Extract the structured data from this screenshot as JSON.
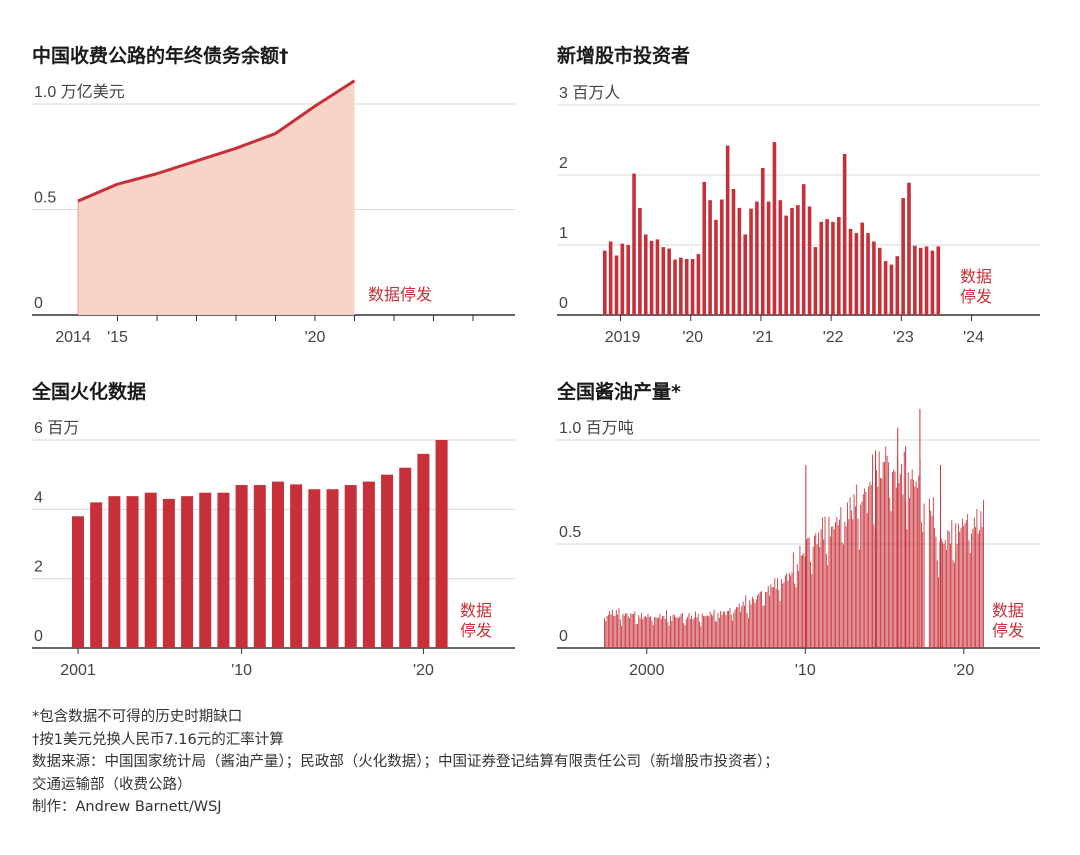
{
  "colors": {
    "accent": "#c73038",
    "area_fill": "#f8d4c8",
    "grid": "#d8d8d8",
    "axis": "#333333"
  },
  "stopped_label": "数据停发",
  "footnotes": [
    "*包含数据不可得的历史时期缺口",
    "†按1美元兑换人民币7.16元的汇率计算",
    "数据来源：中国国家统计局（酱油产量）；民政部（火化数据）；中国证券登记结算有限责任公司（新增股市投资者）；",
    "交通运输部（收费公路）",
    "制作：Andrew Barnett/WSJ"
  ],
  "chart_data": [
    {
      "id": "toll",
      "type": "area",
      "title": "中国收费公路的年终债务余额†",
      "unit_label": "1.0 万亿美元",
      "y_ticks": [
        "0",
        "0.5",
        ""
      ],
      "x_tick_labels": [
        "2014",
        "'15",
        "'20"
      ],
      "ylim": [
        0,
        1.0
      ],
      "x": [
        2014,
        2015,
        2016,
        2017,
        2018,
        2019,
        2020,
        2021
      ],
      "values": [
        0.54,
        0.62,
        0.67,
        0.73,
        0.79,
        0.86,
        0.99,
        1.11
      ],
      "stopped_label": "数据停发"
    },
    {
      "id": "investors",
      "type": "bar",
      "title": "新增股市投资者",
      "unit_label": "3 百万人",
      "y_ticks": [
        "0",
        "1",
        "2",
        ""
      ],
      "x_tick_labels": [
        "2019",
        "'20",
        "'21",
        "'22",
        "'23",
        "'24"
      ],
      "ylim": [
        0,
        3
      ],
      "start": "2018-10",
      "values": [
        0.92,
        1.05,
        0.85,
        1.02,
        1.0,
        2.02,
        1.53,
        1.15,
        1.06,
        1.08,
        0.97,
        0.95,
        0.79,
        0.82,
        0.8,
        0.8,
        0.87,
        1.9,
        1.64,
        1.36,
        1.65,
        2.42,
        1.8,
        1.53,
        1.15,
        1.52,
        1.62,
        2.1,
        1.62,
        2.47,
        1.64,
        1.42,
        1.53,
        1.57,
        1.87,
        1.55,
        0.97,
        1.33,
        1.37,
        1.33,
        1.4,
        2.3,
        1.23,
        1.17,
        1.32,
        1.17,
        1.05,
        0.96,
        0.77,
        0.72,
        0.84,
        1.67,
        1.89,
        0.99,
        0.96,
        0.98,
        0.92,
        0.98
      ],
      "stopped_label": "数据停发"
    },
    {
      "id": "cremation",
      "type": "bar",
      "title": "全国火化数据",
      "unit_label": "6 百万",
      "y_ticks": [
        "0",
        "2",
        "4",
        ""
      ],
      "x_tick_labels": [
        "2001",
        "'10",
        "'20"
      ],
      "ylim": [
        0,
        6
      ],
      "categories": [
        "2001",
        "2002",
        "2003",
        "2004",
        "2005",
        "2006",
        "2007",
        "2008",
        "2009",
        "2010",
        "2011",
        "2012",
        "2013",
        "2014",
        "2015",
        "2016",
        "2017",
        "2018",
        "2019",
        "2020",
        "2021"
      ],
      "values": [
        3.8,
        4.2,
        4.38,
        4.38,
        4.48,
        4.3,
        4.38,
        4.48,
        4.48,
        4.7,
        4.7,
        4.8,
        4.72,
        4.58,
        4.58,
        4.7,
        4.8,
        5.0,
        5.2,
        5.6,
        6.0
      ],
      "stopped_label": "数据停发"
    },
    {
      "id": "soy",
      "type": "bar",
      "title": "全国酱油产量*",
      "unit_label": "1.0 百万吨",
      "y_ticks": [
        "0",
        "0.5",
        ""
      ],
      "x_tick_labels": [
        "2000",
        "'10",
        "'20"
      ],
      "ylim": [
        0,
        1.0
      ],
      "x_range": [
        1997.3,
        2021.3
      ],
      "anchors": [
        [
          1997.3,
          0.17
        ],
        [
          2000,
          0.15
        ],
        [
          2003,
          0.15
        ],
        [
          2005,
          0.17
        ],
        [
          2006.5,
          0.22
        ],
        [
          2008,
          0.3
        ],
        [
          2009,
          0.35
        ],
        [
          2010,
          0.48
        ],
        [
          2011,
          0.55
        ],
        [
          2012,
          0.6
        ],
        [
          2013,
          0.68
        ],
        [
          2014,
          0.75
        ],
        [
          2015,
          0.9
        ],
        [
          2016,
          0.82
        ],
        [
          2017,
          0.8
        ],
        [
          2018,
          0.68
        ],
        [
          2018.2,
          0.5
        ],
        [
          2019,
          0.52
        ],
        [
          2020,
          0.6
        ],
        [
          2021.3,
          0.6
        ]
      ],
      "spikes": [
        [
          2010.0,
          0.88
        ],
        [
          2015.8,
          1.06
        ],
        [
          2017.2,
          1.15
        ],
        [
          2016.3,
          0.97
        ],
        [
          2014.4,
          0.95
        ],
        [
          2018.5,
          0.88
        ]
      ],
      "stopped_label": "数据停发"
    }
  ]
}
